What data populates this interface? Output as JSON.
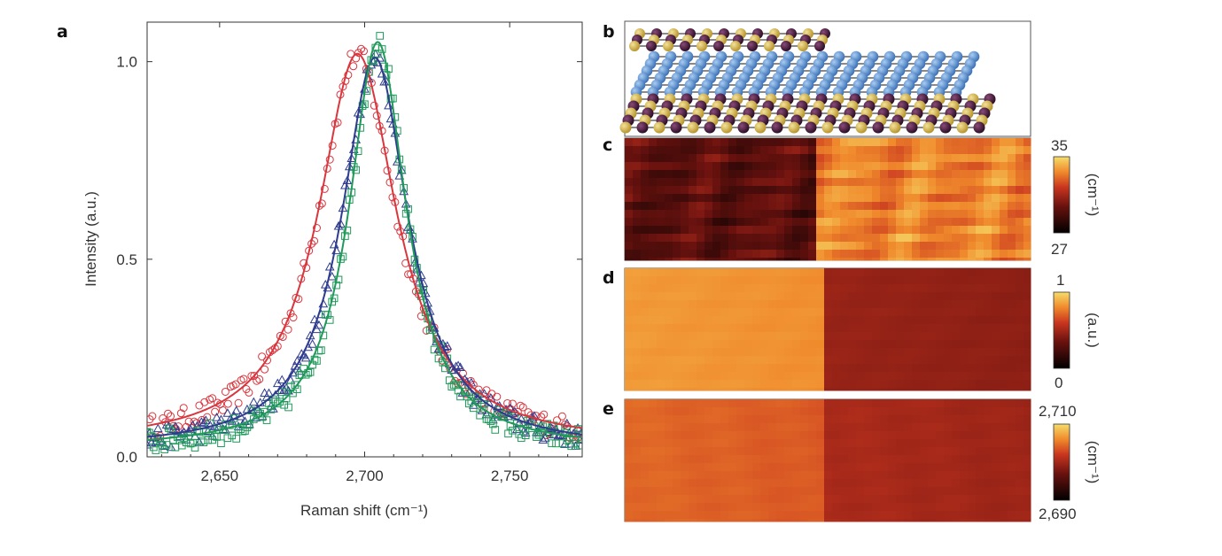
{
  "panel_labels": {
    "a": "a",
    "b": "b",
    "c": "c",
    "d": "d",
    "e": "e"
  },
  "chart_data": [
    {
      "panel": "a",
      "type": "line",
      "title": "",
      "xlabel": "Raman shift (cm⁻¹)",
      "ylabel": "Intensity (a.u.)",
      "xlim": [
        2625,
        2775
      ],
      "ylim": [
        0,
        1.1
      ],
      "xticks": [
        2650,
        2700,
        2750
      ],
      "xtick_labels": [
        "2,650",
        "2,700",
        "2,750"
      ],
      "yticks": [
        0,
        0.5,
        1
      ],
      "ytick_labels": [
        "0.0",
        "0.5",
        "1.0"
      ],
      "series": [
        {
          "name": "red",
          "color": "#d9363e",
          "marker": "circle",
          "fit": {
            "center": 2697.5,
            "amplitude": 0.99,
            "fwhm": 33,
            "baseline": 0.03
          }
        },
        {
          "name": "blue",
          "color": "#2e3b8e",
          "marker": "triangle",
          "fit": {
            "center": 2703.5,
            "amplitude": 0.99,
            "fwhm": 28,
            "baseline": 0.02
          }
        },
        {
          "name": "green",
          "color": "#1f9a5a",
          "marker": "square",
          "fit": {
            "center": 2704.5,
            "amplitude": 1.03,
            "fwhm": 24,
            "baseline": 0.02
          }
        }
      ]
    },
    {
      "panel": "b",
      "type": "other",
      "description_hidden": true
    },
    {
      "panel": "c",
      "type": "heatmap",
      "colorbar": {
        "max_label": "35",
        "min_label": "27",
        "unit": "(cm⁻¹)",
        "range": [
          27,
          35
        ]
      }
    },
    {
      "panel": "d",
      "type": "heatmap",
      "colorbar": {
        "max_label": "1",
        "min_label": "0",
        "unit": "(a.u.)",
        "range": [
          0,
          1
        ]
      }
    },
    {
      "panel": "e",
      "type": "heatmap",
      "colorbar": {
        "max_label": "2,710",
        "min_label": "2,690",
        "unit": "(cm⁻¹)",
        "range": [
          2690,
          2710
        ]
      }
    }
  ],
  "colors": {
    "cmap_low": "#000000",
    "cmap_mid": "#b7301f",
    "cmap_high": "#f2d15a",
    "atom_yellow": "#d8b94a",
    "atom_purple": "#4a1f3f",
    "atom_blue": "#5a93d6"
  }
}
